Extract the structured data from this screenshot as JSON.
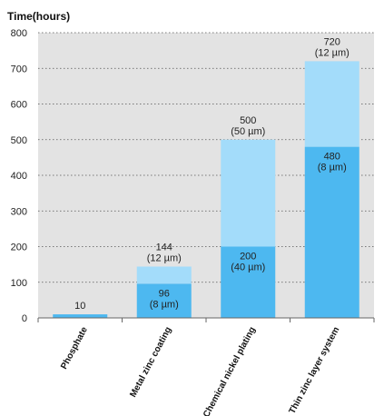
{
  "chart_data": {
    "type": "bar",
    "stacked": true,
    "ylabel": "Time(hours)",
    "ylim": [
      0,
      800
    ],
    "yticks": [
      0,
      100,
      200,
      300,
      400,
      500,
      600,
      700,
      800
    ],
    "grid": true,
    "categories": [
      "Phosphate",
      "Metal zinc coating",
      "Chemical nickel plating",
      "Thin zinc layer system"
    ],
    "series": [
      {
        "values": [
          10,
          96,
          200,
          480
        ],
        "color": "#4db8f0",
        "labels": [
          [
            "10"
          ],
          [
            "96",
            "(8 µm)"
          ],
          [
            "200",
            "(40 µm)"
          ],
          [
            "480",
            "(8 µm)"
          ]
        ]
      },
      {
        "values": [
          0,
          48,
          300,
          240
        ],
        "color": "#a3dcfa",
        "labels": [
          [],
          [
            "144",
            "(12 µm)"
          ],
          [
            "500",
            "(50 µm)"
          ],
          [
            "720",
            "(12 µm)"
          ]
        ]
      }
    ],
    "colors": {
      "plot_bg": "#e3e3e3",
      "grid": "#555555"
    }
  }
}
